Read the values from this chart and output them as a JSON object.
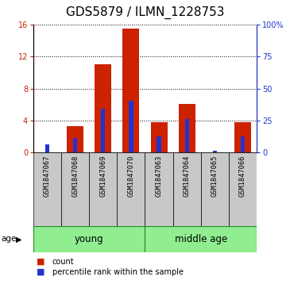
{
  "title": "GDS5879 / ILMN_1228753",
  "samples": [
    "GSM1847067",
    "GSM1847068",
    "GSM1847069",
    "GSM1847070",
    "GSM1847063",
    "GSM1847064",
    "GSM1847065",
    "GSM1847066"
  ],
  "red_counts": [
    0.05,
    3.3,
    11.0,
    15.5,
    3.8,
    6.1,
    0.05,
    3.8
  ],
  "blue_percentiles": [
    6.25,
    11.25,
    34.375,
    40.625,
    12.5,
    26.25,
    1.25,
    12.5
  ],
  "groups": [
    {
      "label": "young",
      "start": 0,
      "end": 4
    },
    {
      "label": "middle age",
      "start": 4,
      "end": 8
    }
  ],
  "group_color": "#90EE90",
  "ylim_left": [
    0,
    16
  ],
  "ylim_right": [
    0,
    100
  ],
  "yticks_left": [
    0,
    4,
    8,
    12,
    16
  ],
  "yticks_right": [
    0,
    25,
    50,
    75,
    100
  ],
  "ytick_labels_right": [
    "0",
    "25",
    "50",
    "75",
    "100%"
  ],
  "red_color": "#cc2200",
  "blue_color": "#2233cc",
  "bar_width": 0.6,
  "blue_bar_width": 0.15,
  "bg_xtick": "#c8c8c8",
  "group_color_border": "#228822",
  "legend_count": "count",
  "legend_percentile": "percentile rank within the sample",
  "title_fontsize": 11,
  "tick_fontsize": 7,
  "group_fontsize": 8.5,
  "sample_fontsize": 6.2
}
